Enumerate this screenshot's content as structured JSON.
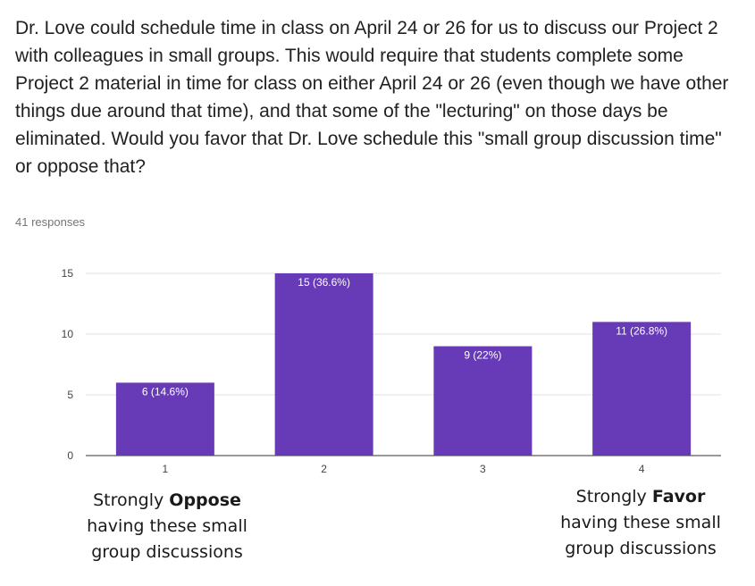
{
  "question": "Dr. Love could schedule time in class on April 24 or 26 for us to discuss our Project 2 with colleagues in small groups. This would require that students complete some Project 2 material in time for class on either April 24 or 26 (even though we have other things due around that time), and that some of the \"lecturing\" on those days be eliminated. Would you favor that Dr. Love schedule this \"small group discussion time\" or oppose that?",
  "responses_label": "41 responses",
  "colors": {
    "bar": "#673ab7",
    "grid": "#e0e0e0",
    "axis": "#333333"
  },
  "chart_data": {
    "type": "bar",
    "categories": [
      "1",
      "2",
      "3",
      "4"
    ],
    "values": [
      6,
      15,
      9,
      11
    ],
    "data_labels": [
      "6 (14.6%)",
      "15 (36.6%)",
      "9 (22%)",
      "11 (26.8%)"
    ],
    "yticks": [
      0,
      5,
      10,
      15
    ],
    "ylim": [
      0,
      15
    ],
    "grid": true,
    "title": "",
    "xlabel": "",
    "ylabel": ""
  },
  "annotations": {
    "left": {
      "prefix": "Strongly ",
      "bold": "Oppose",
      "line2": "having these small",
      "line3": "group discussions"
    },
    "right": {
      "prefix": "Strongly ",
      "bold": "Favor",
      "line2": "having these small",
      "line3": "group discussions"
    }
  }
}
